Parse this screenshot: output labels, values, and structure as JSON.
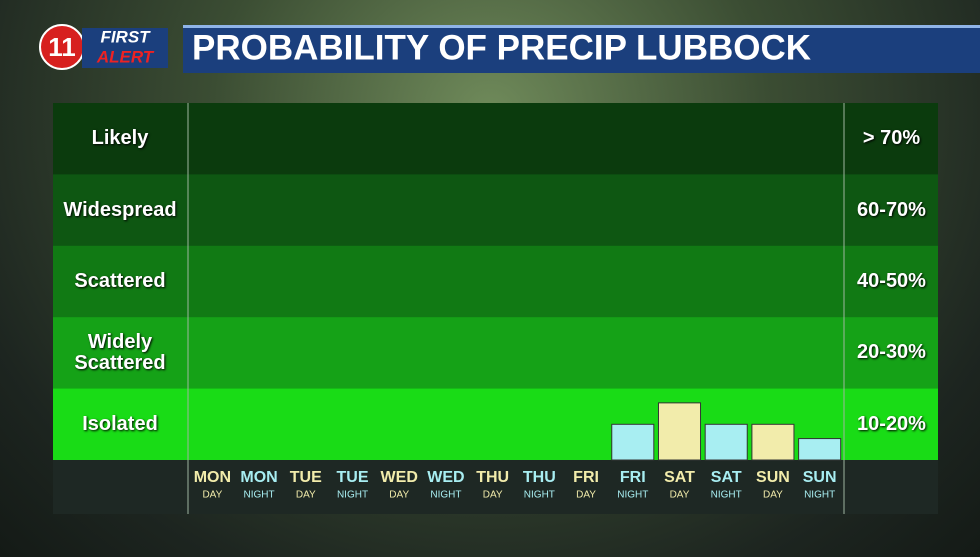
{
  "logo": {
    "channel": "11",
    "line1": "FIRST",
    "line2": "ALERT"
  },
  "chart_data": {
    "type": "bar",
    "title": "PROBABILITY OF PRECIP LUBBOCK",
    "bands": [
      {
        "name": "Likely",
        "range": "> 70%",
        "color": "#0b3b0d"
      },
      {
        "name": "Widespread",
        "range": "60-70%",
        "color": "#0e5712"
      },
      {
        "name": "Scattered",
        "range": "40-50%",
        "color": "#117a14"
      },
      {
        "name": "Widely Scattered",
        "range": "20-30%",
        "color": "#15a217"
      },
      {
        "name": "Isolated",
        "range": "10-20%",
        "color": "#19dc16"
      }
    ],
    "categories": [
      {
        "day": "MON",
        "period": "DAY"
      },
      {
        "day": "MON",
        "period": "NIGHT"
      },
      {
        "day": "TUE",
        "period": "DAY"
      },
      {
        "day": "TUE",
        "period": "NIGHT"
      },
      {
        "day": "WED",
        "period": "DAY"
      },
      {
        "day": "WED",
        "period": "NIGHT"
      },
      {
        "day": "THU",
        "period": "DAY"
      },
      {
        "day": "THU",
        "period": "NIGHT"
      },
      {
        "day": "FRI",
        "period": "DAY"
      },
      {
        "day": "FRI",
        "period": "NIGHT"
      },
      {
        "day": "SAT",
        "period": "DAY"
      },
      {
        "day": "SAT",
        "period": "NIGHT"
      },
      {
        "day": "SUN",
        "period": "DAY"
      },
      {
        "day": "SUN",
        "period": "NIGHT"
      }
    ],
    "values": [
      null,
      null,
      null,
      null,
      null,
      null,
      null,
      null,
      null,
      15,
      18,
      15,
      15,
      13
    ],
    "colors": [
      "#f2ecab",
      "#a8eef2",
      "#f2ecab",
      "#a8eef2",
      "#f2ecab",
      "#a8eef2",
      "#f2ecab",
      "#a8eef2",
      "#f2ecab",
      "#a8eef2",
      "#f2ecab",
      "#a8eef2",
      "#f2ecab",
      "#a8eef2"
    ],
    "ylim": [
      10,
      20
    ]
  }
}
